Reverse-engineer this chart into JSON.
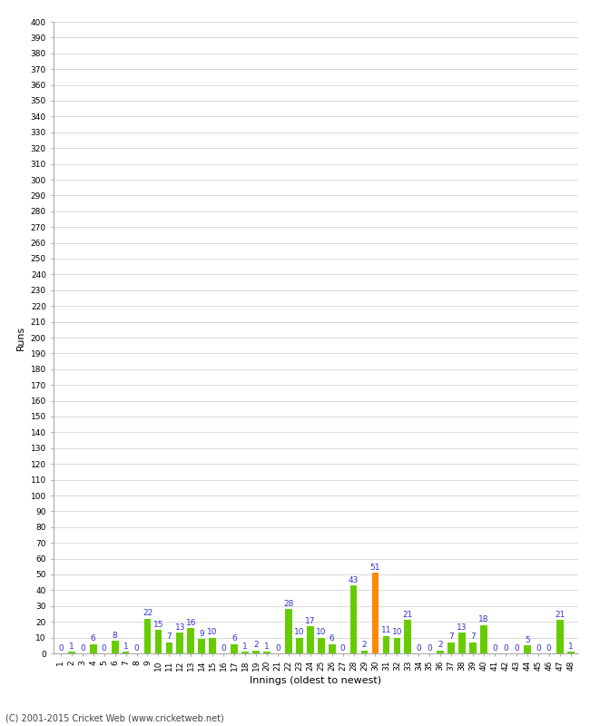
{
  "title": "",
  "xlabel": "Innings (oldest to newest)",
  "ylabel": "Runs",
  "background_color": "#ffffff",
  "grid_color": "#cccccc",
  "bar_color_normal": "#66cc00",
  "bar_color_highlight": "#ff8800",
  "label_color": "#3333cc",
  "footer": "(C) 2001-2015 Cricket Web (www.cricketweb.net)",
  "ylim": [
    0,
    400
  ],
  "yticks": [
    0,
    10,
    20,
    30,
    40,
    50,
    60,
    70,
    80,
    90,
    100,
    110,
    120,
    130,
    140,
    150,
    160,
    170,
    180,
    190,
    200,
    210,
    220,
    230,
    240,
    250,
    260,
    270,
    280,
    290,
    300,
    310,
    320,
    330,
    340,
    350,
    360,
    370,
    380,
    390,
    400
  ],
  "innings": [
    1,
    2,
    3,
    4,
    5,
    6,
    7,
    8,
    9,
    10,
    11,
    12,
    13,
    14,
    15,
    16,
    17,
    18,
    19,
    20,
    21,
    22,
    23,
    24,
    25,
    26,
    27,
    28,
    29,
    30,
    31,
    32,
    33,
    34,
    35,
    36,
    37,
    38,
    39,
    40,
    41,
    42,
    43,
    44,
    45,
    46,
    47,
    48
  ],
  "values": [
    0,
    1,
    0,
    6,
    0,
    8,
    1,
    0,
    22,
    15,
    7,
    13,
    16,
    9,
    10,
    0,
    6,
    1,
    2,
    1,
    0,
    28,
    10,
    17,
    10,
    6,
    0,
    43,
    2,
    51,
    11,
    10,
    21,
    0,
    0,
    2,
    7,
    13,
    7,
    18,
    0,
    0,
    0,
    5,
    0,
    0,
    21,
    1
  ],
  "highlight_idx": 29,
  "label_fontsize": 6.5,
  "tick_fontsize": 6.5,
  "axis_label_fontsize": 8,
  "title_fontsize": 10,
  "bar_width": 0.65
}
